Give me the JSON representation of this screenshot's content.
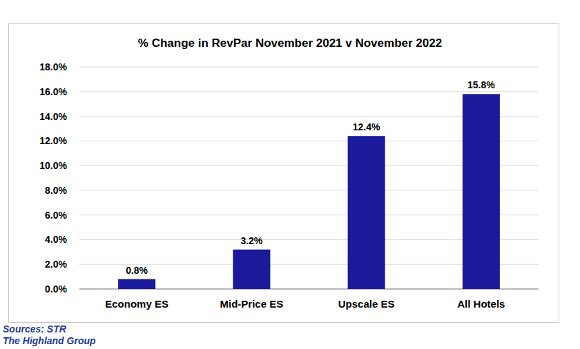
{
  "chart_data": {
    "type": "bar",
    "title": "% Change in RevPar November 2021 v November 2022",
    "categories": [
      "Economy ES",
      "Mid-Price ES",
      "Upscale ES",
      "All Hotels"
    ],
    "values": [
      0.8,
      3.2,
      12.4,
      15.8
    ],
    "value_labels": [
      "0.8%",
      "3.2%",
      "12.4%",
      "15.8%"
    ],
    "color": "#1a1a9a",
    "ylim": [
      0,
      18
    ],
    "yticks": [
      {
        "value": 0,
        "label": "0.0%"
      },
      {
        "value": 2,
        "label": "2.0%"
      },
      {
        "value": 4,
        "label": "4.0%"
      },
      {
        "value": 6,
        "label": "6.0%"
      },
      {
        "value": 8,
        "label": "8.0%"
      },
      {
        "value": 10,
        "label": "10.0%"
      },
      {
        "value": 12,
        "label": "12.0%"
      },
      {
        "value": 14,
        "label": "14.0%"
      },
      {
        "value": 16,
        "label": "16.0%"
      },
      {
        "value": 18,
        "label": "18.0%"
      }
    ],
    "grid": true,
    "data_labels": true,
    "annotations": [
      "Sources: STR",
      "The Highland Group"
    ]
  }
}
